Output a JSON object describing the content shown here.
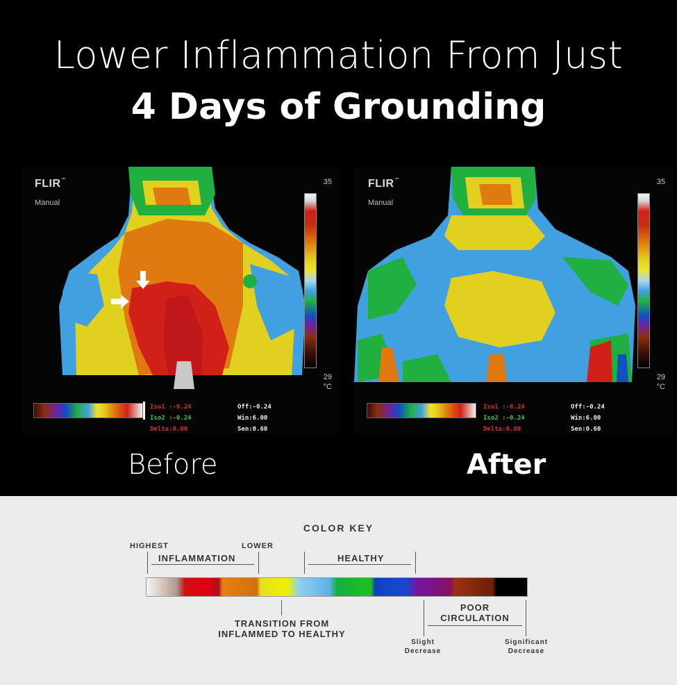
{
  "headline": {
    "line1": "Lower Inflammation From Just",
    "line2": "4 Days of Grounding"
  },
  "panels": {
    "before": {
      "brand": "FLIR",
      "brand_tm": "™",
      "mode": "Manual",
      "scale_max": "35",
      "scale_min": "29",
      "unit": "°C",
      "iso1": "Iso1 :-0.24",
      "iso2": "Iso2 :-0.24",
      "delta": "Delta:0.00",
      "off": "Off:-0.24",
      "win": "Win:6.00",
      "sen": "Sen:0.60",
      "caption": "Before"
    },
    "after": {
      "brand": "FLIR",
      "brand_tm": "™",
      "mode": "Manual",
      "scale_max": "35",
      "scale_min": "29",
      "unit": "°C",
      "iso1": "Iso1 :-0.24",
      "iso2": "Iso2 :-0.24",
      "delta": "Delta:0.00",
      "off": "Off:-0.24",
      "win": "Win:6.00",
      "sen": "Sen:0.60",
      "caption": "After"
    }
  },
  "color_key": {
    "title": "COLOR KEY",
    "highest": "HIGHEST",
    "lower": "LOWER",
    "inflammation": "INFLAMMATION",
    "healthy": "HEALTHY",
    "transition_line1": "TRANSITION FROM",
    "transition_line2": "INFLAMMED TO HEALTHY",
    "poor_line1": "POOR",
    "poor_line2": "CIRCULATION",
    "slight_line1": "Slight",
    "slight_line2": "Decrease",
    "significant_line1": "Significant",
    "significant_line2": "Decrease"
  },
  "colors": {
    "background_top": "#000000",
    "background_key": "#ececec",
    "inflamed_red": "#d02018",
    "transition_yellow": "#e2d020",
    "healthy_blue": "#40a0e0",
    "healthy_green": "#20b040"
  }
}
